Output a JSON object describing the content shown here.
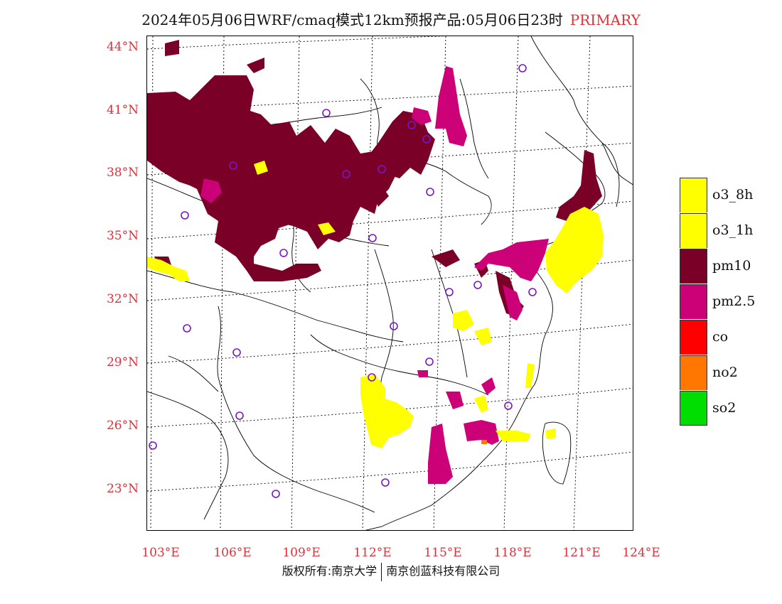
{
  "header": {
    "title": "2024年05月06日WRF/cmaq模式12km预报产品:05月06日23时",
    "tag": "PRIMARY"
  },
  "map": {
    "lat_labels": [
      "44°N",
      "41°N",
      "38°N",
      "35°N",
      "32°N",
      "29°N",
      "26°N",
      "23°N"
    ],
    "lon_labels": [
      "103°E",
      "106°E",
      "109°E",
      "112°E",
      "115°E",
      "118°E",
      "121°E",
      "124°E"
    ]
  },
  "legend": {
    "items": [
      {
        "label": "o3_8h",
        "color": "#ffff00"
      },
      {
        "label": "o3_1h",
        "color": "#ffff00"
      },
      {
        "label": "pm10",
        "color": "#7b0028"
      },
      {
        "label": "pm2.5",
        "color": "#cc0077"
      },
      {
        "label": "co",
        "color": "#ff0000"
      },
      {
        "label": "no2",
        "color": "#ff7700"
      },
      {
        "label": "so2",
        "color": "#00dd00"
      }
    ]
  },
  "footer": {
    "left": "版权所有:南京大学",
    "right": "南京创蓝科技有限公司"
  }
}
